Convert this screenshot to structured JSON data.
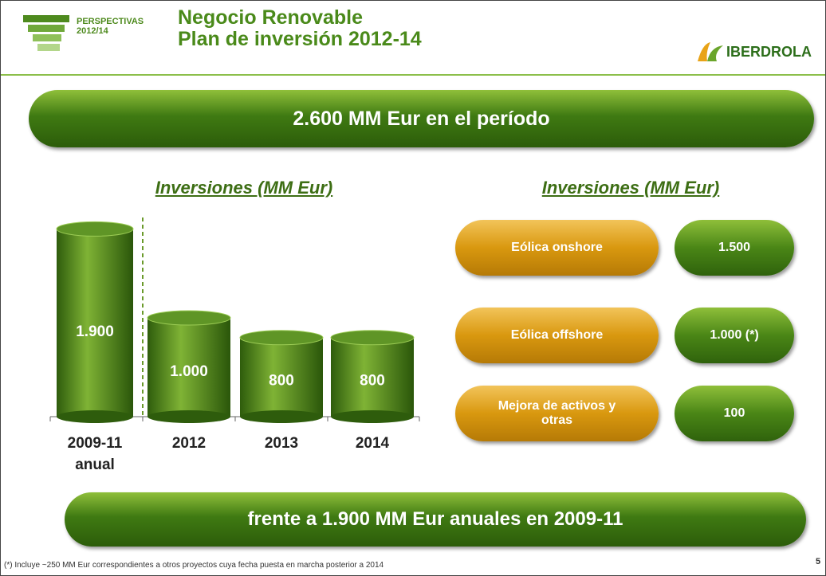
{
  "header": {
    "logo_title": "PERSPECTIVAS",
    "logo_years": "2012/14",
    "title_line1": "Negocio Renovable",
    "title_line2": "Plan de inversión 2012-14",
    "brand": "IBERDROLA"
  },
  "banner": "2.600 MM Eur en el período",
  "chart_data": {
    "type": "bar",
    "title": "Inversiones (MM Eur)",
    "categories": [
      "2009-11 anual",
      "2012",
      "2013",
      "2014"
    ],
    "values": [
      1900,
      1000,
      800,
      800
    ],
    "value_labels": [
      "1.900",
      "1.000",
      "800",
      "800"
    ],
    "color": "#4f8a1c"
  },
  "breakdown": {
    "title": "Inversiones (MM Eur)",
    "rows": [
      {
        "label": "Eólica onshore",
        "value": "1.500"
      },
      {
        "label": "Eólica offshore",
        "value": "1.000 (*)"
      },
      {
        "label": "Mejora de activos y otras",
        "value": "100"
      }
    ]
  },
  "footer_banner": "frente a 1.900 MM Eur anuales en 2009-11",
  "footnote": "(*) Incluye ~250 MM Eur correspondientes a otros proyectos cuya fecha puesta en marcha posterior a 2014",
  "page_number": "5"
}
